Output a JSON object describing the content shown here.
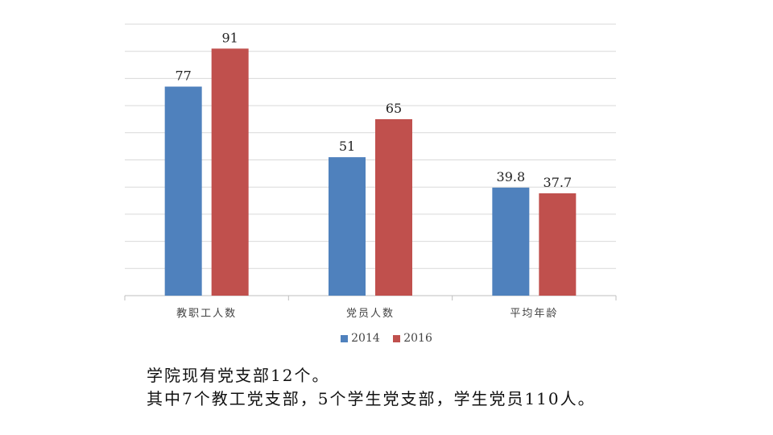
{
  "chart_data": {
    "type": "bar",
    "categories": [
      "教职工人数",
      "党员人数",
      "平均年龄"
    ],
    "series": [
      {
        "name": "2014",
        "values": [
          77,
          51,
          39.8
        ],
        "color": "#4F81BD"
      },
      {
        "name": "2016",
        "values": [
          91,
          65,
          37.7
        ],
        "color": "#C0504D"
      }
    ],
    "data_labels": [
      [
        "77",
        "51",
        "39.8"
      ],
      [
        "91",
        "65",
        "37.7"
      ]
    ],
    "ylim": [
      0,
      100
    ],
    "grid": true,
    "legend_position": "bottom"
  },
  "notes": [
    "学院现有党支部12个。",
    "其中7个教工党支部，5个学生党支部，学生党员110人。"
  ]
}
